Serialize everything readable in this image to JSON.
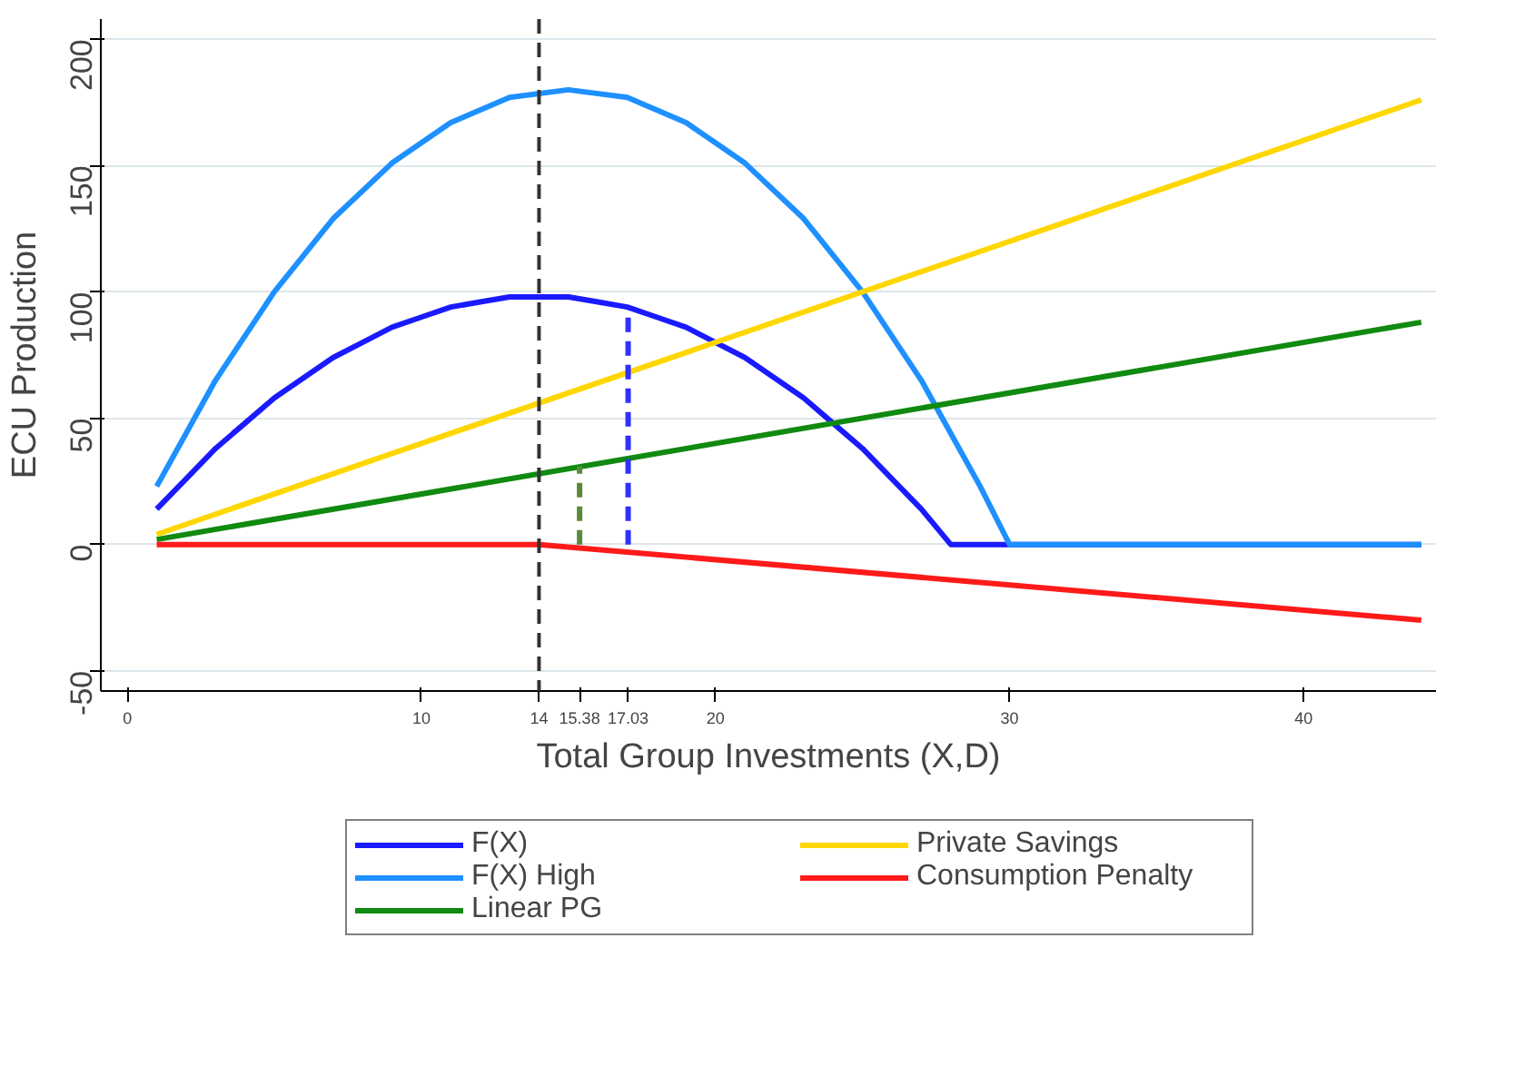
{
  "chart_data": {
    "type": "line",
    "xlabel": "Total Group Investments (X,D)",
    "ylabel": "ECU Production",
    "xlim": [
      -0.9,
      44.5
    ],
    "ylim": [
      -58,
      208
    ],
    "xticks": [
      0,
      10,
      14,
      15.38,
      17.03,
      20,
      30,
      40
    ],
    "yticks": [
      -50,
      0,
      50,
      100,
      150,
      200
    ],
    "grid": "y",
    "legend": "bottom",
    "line_style": "solid",
    "marker": "none",
    "series": [
      {
        "name": "F(X)",
        "color": "#1a1aff",
        "x": [
          1,
          2,
          3,
          4,
          5,
          6,
          7,
          8,
          9,
          10,
          11,
          12,
          13,
          14,
          15,
          16,
          17,
          18,
          19,
          20,
          21,
          22,
          23,
          24,
          25,
          26,
          27,
          28,
          44
        ],
        "values": [
          14,
          26,
          38,
          48,
          58,
          66,
          74,
          80,
          86,
          90,
          94,
          96,
          98,
          98,
          98,
          96,
          94,
          90,
          86,
          80,
          74,
          66,
          58,
          48,
          38,
          26,
          14,
          0,
          0
        ]
      },
      {
        "name": "F(X) High",
        "color": "#1e90ff",
        "x": [
          1,
          3,
          5,
          7,
          9,
          11,
          13,
          15,
          17,
          19,
          21,
          23,
          25,
          27,
          29,
          30,
          44
        ],
        "values": [
          23,
          65,
          100,
          129,
          151,
          167,
          177,
          180,
          177,
          167,
          151,
          129,
          100,
          65,
          23,
          0,
          0
        ]
      },
      {
        "name": "Linear PG",
        "color": "#108a10",
        "x": [
          1,
          44
        ],
        "values": [
          2,
          88
        ]
      },
      {
        "name": "Private Savings",
        "color": "#ffd700",
        "x": [
          1,
          44
        ],
        "values": [
          4,
          176
        ]
      },
      {
        "name": "Consumption Penalty",
        "color": "#ff1a1a",
        "x": [
          1,
          14,
          44
        ],
        "values": [
          0,
          0,
          -30
        ]
      },
      {
        "color": "#5a8a3a",
        "x": [
          15.38,
          15.38
        ],
        "values": [
          0,
          31
        ],
        "line_style": "dashed"
      },
      {
        "color": "#3030ff",
        "x": [
          17.03,
          17.03
        ],
        "values": [
          0,
          93
        ],
        "line_style": "dashed"
      }
    ],
    "ref_lines": [
      {
        "axis": "x",
        "value": 14,
        "label": null,
        "color": "#333333",
        "line_style": "dashed"
      }
    ]
  }
}
